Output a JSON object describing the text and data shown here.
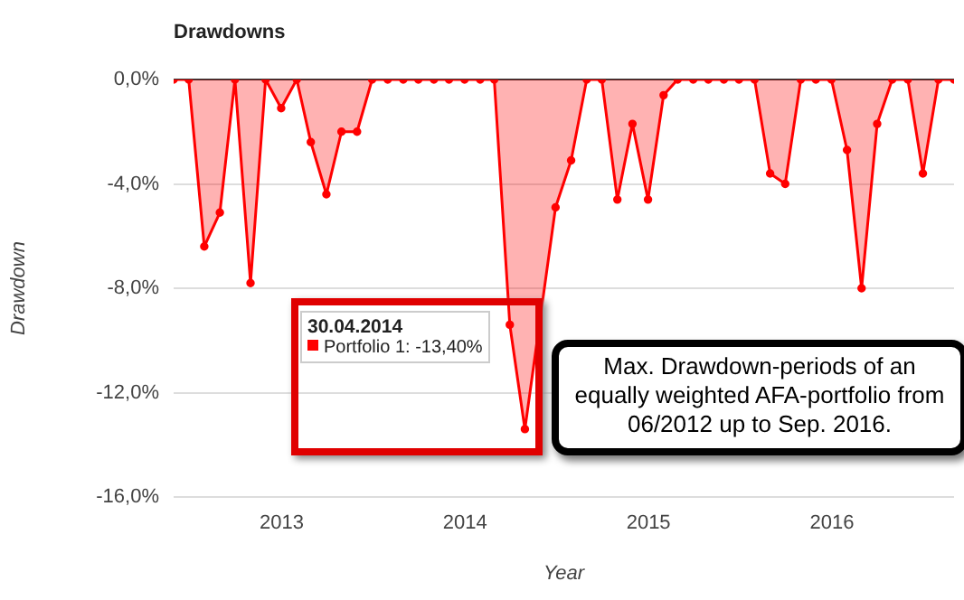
{
  "chart_data": {
    "type": "area",
    "title": "Drawdowns",
    "xlabel": "Year",
    "ylabel": "Drawdown",
    "x": [
      "2012-05-31",
      "2012-06-30",
      "2012-07-31",
      "2012-08-31",
      "2012-09-30",
      "2012-10-31",
      "2012-11-30",
      "2012-12-31",
      "2013-01-31",
      "2013-02-28",
      "2013-03-31",
      "2013-04-30",
      "2013-05-31",
      "2013-06-30",
      "2013-07-31",
      "2013-08-31",
      "2013-09-30",
      "2013-10-31",
      "2013-11-30",
      "2013-12-31",
      "2014-01-31",
      "2014-02-28",
      "2014-03-31",
      "2014-04-30",
      "2014-05-31",
      "2014-06-30",
      "2014-07-31",
      "2014-08-31",
      "2014-09-30",
      "2014-10-31",
      "2014-11-30",
      "2014-12-31",
      "2015-01-31",
      "2015-02-28",
      "2015-03-31",
      "2015-04-30",
      "2015-05-31",
      "2015-06-30",
      "2015-07-31",
      "2015-08-31",
      "2015-09-30",
      "2015-10-31",
      "2015-11-30",
      "2015-12-31",
      "2016-01-31",
      "2016-02-29",
      "2016-03-31",
      "2016-04-30",
      "2016-05-31",
      "2016-06-30",
      "2016-07-31",
      "2016-08-31"
    ],
    "series": [
      {
        "color": "#ff0000",
        "values": [
          0,
          0,
          -6.4,
          -5.1,
          0,
          -7.8,
          0,
          -1.1,
          0,
          -2.4,
          -4.4,
          -2.0,
          -2.0,
          0,
          0,
          0,
          0,
          0,
          0,
          0,
          0,
          0,
          -9.4,
          -13.4,
          null,
          -4.9,
          -3.1,
          0,
          0,
          -4.6,
          -1.7,
          -4.6,
          -0.6,
          0,
          0,
          0,
          0,
          0,
          0,
          -3.6,
          -4.0,
          0,
          0,
          0,
          -2.7,
          -8.0,
          -1.7,
          0,
          0,
          -3.6,
          0,
          0
        ]
      }
    ],
    "xlim": [
      "2012-05-31",
      "2016-08-31"
    ],
    "xticks": [
      "2013",
      "2014",
      "2015",
      "2016"
    ],
    "ylim": [
      -16,
      0
    ],
    "yticks": [
      {
        "value": -16,
        "label": "-16,0%"
      },
      {
        "value": -12,
        "label": "-12,0%"
      },
      {
        "value": -8,
        "label": "-8,0%"
      },
      {
        "value": -4,
        "label": "-4,0%"
      },
      {
        "value": 0,
        "label": "0,0%"
      }
    ],
    "grid": "y",
    "legend": false,
    "marker": "circle",
    "annotations": [
      "30.04.2014",
      "Portfolio 1: -13,40%",
      "Max. Drawdown-periods of an equally weighted AFA-portfolio from 06/2012 up to Sep. 2016."
    ]
  }
}
